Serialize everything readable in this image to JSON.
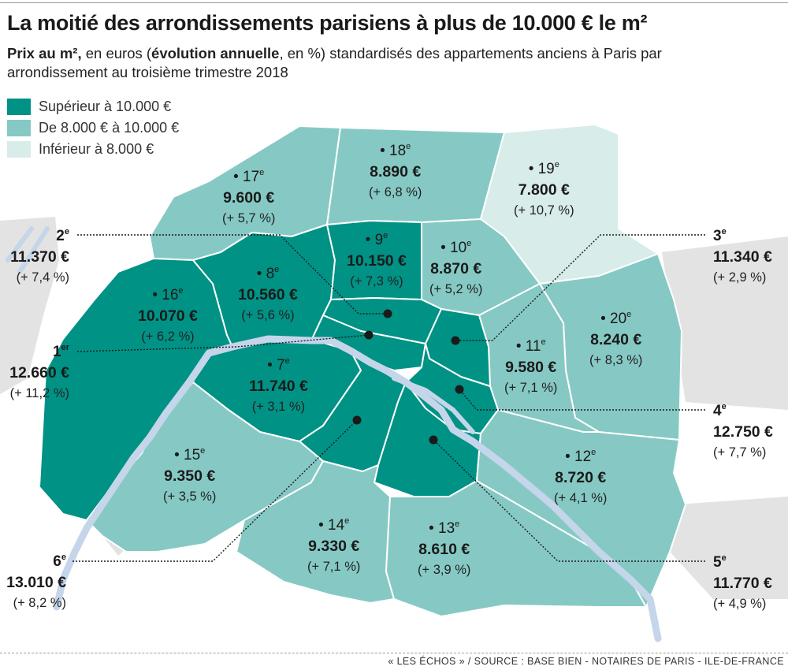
{
  "title": "La moitié des arrondissements parisiens à plus de 10.000 € le m²",
  "subtitle": {
    "bold1": "Prix au m²,",
    "text1": " en euros (",
    "bold2": "évolution annuelle",
    "text2": ", en %) standardisés des appartements anciens à Paris par arrondissement au troisième trimestre 2018"
  },
  "legend": [
    {
      "label": "Supérieur à 10.000 €",
      "color": "#009285"
    },
    {
      "label": "De 8.000 € à 10.000 €",
      "color": "#86c9c4"
    },
    {
      "label": "Inférieur à 8.000 €",
      "color": "#d8ecea"
    }
  ],
  "colors": {
    "outside": "#e3e3e3",
    "seine": "#c5d5ea",
    "border": "#ffffff",
    "leader": "#1a1a1a"
  },
  "arrondissements": [
    {
      "id": "1",
      "num": "1",
      "suffix": "er",
      "price": "12.660 €",
      "change": "(+ 11,2 %)",
      "category": "high"
    },
    {
      "id": "2",
      "num": "2",
      "suffix": "e",
      "price": "11.370 €",
      "change": "(+ 7,4 %)",
      "category": "high"
    },
    {
      "id": "3",
      "num": "3",
      "suffix": "e",
      "price": "11.340 €",
      "change": "(+ 2,9 %)",
      "category": "high"
    },
    {
      "id": "4",
      "num": "4",
      "suffix": "e",
      "price": "12.750 €",
      "change": "(+ 7,7 %)",
      "category": "high"
    },
    {
      "id": "5",
      "num": "5",
      "suffix": "e",
      "price": "11.770 €",
      "change": "(+ 4,9 %)",
      "category": "high"
    },
    {
      "id": "6",
      "num": "6",
      "suffix": "e",
      "price": "13.010 €",
      "change": "(+ 8,2 %)",
      "category": "high"
    },
    {
      "id": "7",
      "num": "• 7",
      "suffix": "e",
      "price": "11.740 €",
      "change": "(+ 3,1 %)",
      "category": "high"
    },
    {
      "id": "8",
      "num": "• 8",
      "suffix": "e",
      "price": "10.560 €",
      "change": "(+ 5,6 %)",
      "category": "high"
    },
    {
      "id": "9",
      "num": "• 9",
      "suffix": "e",
      "price": "10.150 €",
      "change": "(+ 7,3 %)",
      "category": "high"
    },
    {
      "id": "10",
      "num": "• 10",
      "suffix": "e",
      "price": "8.870 €",
      "change": "(+ 5,2 %)",
      "category": "mid"
    },
    {
      "id": "11",
      "num": "• 11",
      "suffix": "e",
      "price": "9.580 €",
      "change": "(+ 7,1 %)",
      "category": "mid"
    },
    {
      "id": "12",
      "num": "• 12",
      "suffix": "e",
      "price": "8.720 €",
      "change": "(+ 4,1 %)",
      "category": "mid"
    },
    {
      "id": "13",
      "num": "• 13",
      "suffix": "e",
      "price": "8.610 €",
      "change": "(+ 3,9 %)",
      "category": "mid"
    },
    {
      "id": "14",
      "num": "• 14",
      "suffix": "e",
      "price": "9.330 €",
      "change": "(+ 7,1 %)",
      "category": "mid"
    },
    {
      "id": "15",
      "num": "• 15",
      "suffix": "e",
      "price": "9.350 €",
      "change": "(+ 3,5 %)",
      "category": "mid"
    },
    {
      "id": "16",
      "num": "• 16",
      "suffix": "e",
      "price": "10.070 €",
      "change": "(+ 6,2 %)",
      "category": "high"
    },
    {
      "id": "17",
      "num": "• 17",
      "suffix": "e",
      "price": "9.600 €",
      "change": "(+ 5,7 %)",
      "category": "mid"
    },
    {
      "id": "18",
      "num": "• 18",
      "suffix": "e",
      "price": "8.890 €",
      "change": "(+ 6,8 %)",
      "category": "mid"
    },
    {
      "id": "19",
      "num": "• 19",
      "suffix": "e",
      "price": "7.800 €",
      "change": "(+ 10,7 %)",
      "category": "low"
    },
    {
      "id": "20",
      "num": "• 20",
      "suffix": "e",
      "price": "8.240 €",
      "change": "(+ 8,3 %)",
      "category": "mid"
    }
  ],
  "source": "« LES ÉCHOS » / SOURCE : BASE BIEN - NOTAIRES DE PARIS - ILE-DE-FRANCE"
}
